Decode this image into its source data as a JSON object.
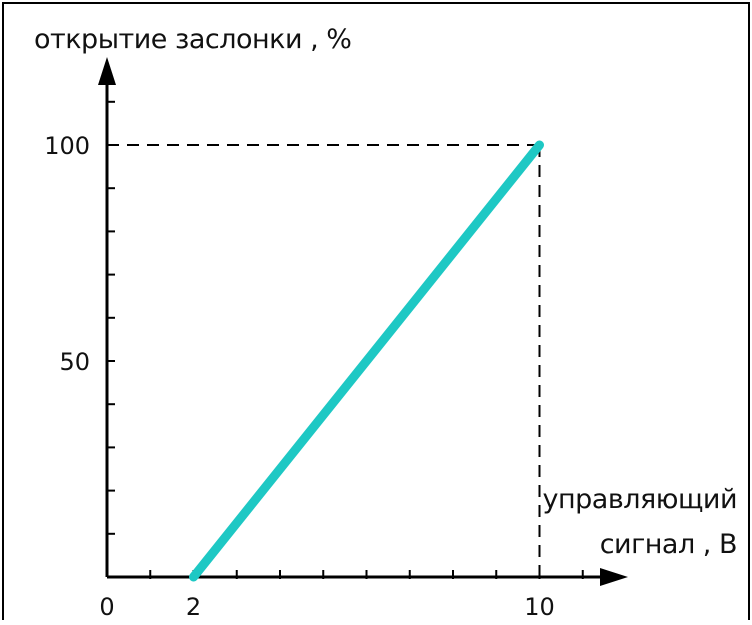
{
  "chart_data": {
    "type": "line",
    "title": "",
    "ylabel": "открытие заслонки , %",
    "xlabel_lines": [
      "управляющий",
      "сигнал , В"
    ],
    "x_tick_labels": [
      "0",
      "2",
      "10"
    ],
    "y_tick_labels": [
      "50",
      "100"
    ],
    "x_tick_values": [
      0,
      2,
      10
    ],
    "y_tick_values": [
      50,
      100
    ],
    "xlim": [
      0,
      12
    ],
    "ylim": [
      0,
      120
    ],
    "x_minor_step": 1,
    "y_minor_step": 10,
    "grid": false,
    "series": [
      {
        "color": "#1ec8c4",
        "x": [
          2,
          10
        ],
        "y": [
          0,
          100
        ]
      }
    ],
    "reference_lines": [
      {
        "style": "dashed",
        "from": [
          0,
          100
        ],
        "to": [
          10,
          100
        ]
      },
      {
        "style": "dashed",
        "from": [
          10,
          0
        ],
        "to": [
          10,
          100
        ]
      }
    ]
  }
}
